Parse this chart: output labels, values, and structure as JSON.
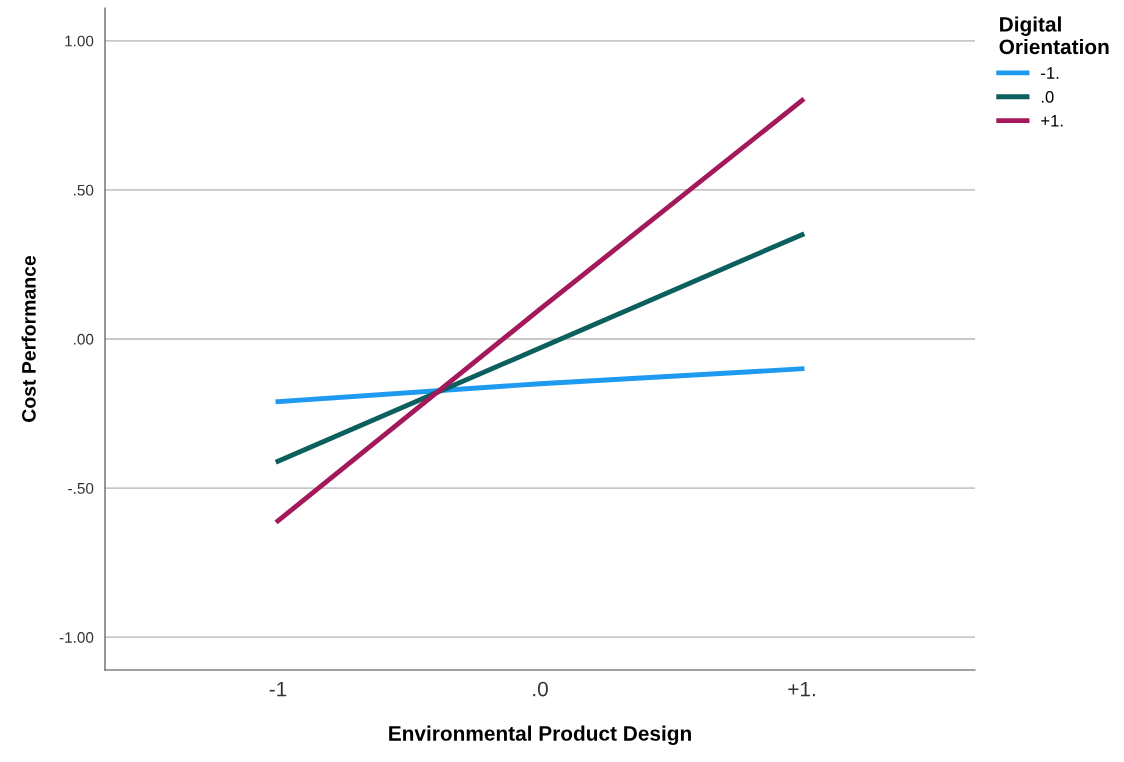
{
  "chart_data": {
    "type": "line",
    "xlabel": "Environmental Product Design",
    "ylabel": "Cost Performance",
    "legend_title": "Digital Orientation",
    "categories": [
      "-1",
      ".0",
      "+1."
    ],
    "series": [
      {
        "name": "-1.",
        "color": "#1e9af0",
        "values": [
          -0.21,
          -0.15,
          -0.1
        ]
      },
      {
        "name": ".0",
        "color": "#0b5f5c",
        "values": [
          -0.41,
          -0.03,
          0.35
        ]
      },
      {
        "name": "+1.",
        "color": "#a3195b",
        "values": [
          -0.61,
          0.1,
          0.8
        ]
      }
    ],
    "ylim": [
      -1.11,
      1.11
    ],
    "yticks": [
      {
        "value": -1,
        "label": "-1.00"
      },
      {
        "value": -0.5,
        "label": "-.50"
      },
      {
        "value": 0,
        "label": ".00"
      },
      {
        "value": 0.5,
        "label": ".50"
      },
      {
        "value": 1,
        "label": "1.00"
      }
    ],
    "grid": "y",
    "legend": "top right",
    "marker": "none",
    "line_style": "solid"
  }
}
